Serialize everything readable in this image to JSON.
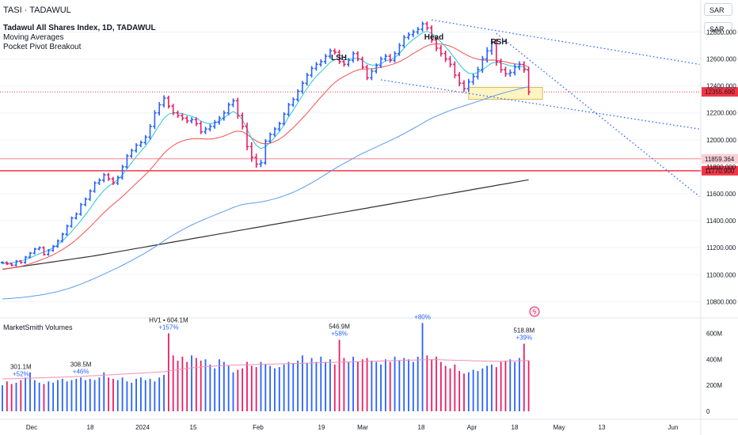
{
  "header": {
    "symbol_line": "TASI · TADAWUL",
    "currency_top": "SAR",
    "currency_second": "SAR"
  },
  "legend": {
    "line1": "Tadawul All Shares Index, 1D, TADAWUL",
    "line2": "Moving Averages",
    "line3": "Pocket Pivot Breakout"
  },
  "colors": {
    "up": "#2962ff",
    "down": "#e91e63",
    "ma_short": "#26c6da",
    "ma_mid": "#ef5350",
    "ma_long": "#5b9cf0",
    "ma_200": "#333333",
    "trendline": "#2962ff",
    "level_red": "#f23645",
    "volume_ma": "#f48fb1",
    "highlight_box": "#fff4c2"
  },
  "chart_data": {
    "type": "ohlc",
    "price_axis": {
      "ticks": [
        "12800.000",
        "12600.000",
        "12400.000",
        "12200.000",
        "12000.000",
        "11800.000",
        "11600.000",
        "11400.000",
        "11200.000",
        "11000.000",
        "10800.000"
      ],
      "tick_values": [
        12800,
        12600,
        12400,
        12200,
        12000,
        11800,
        11600,
        11400,
        11200,
        11000,
        10800
      ],
      "current_price_label": "12355.690",
      "current_price": 12355.69,
      "level_labels": [
        "11859.364",
        "11770.900"
      ],
      "level_values": [
        11859.364,
        11770.9
      ]
    },
    "volume_axis": {
      "title": "MarketSmith Volumes",
      "ticks": [
        "600M",
        "400M",
        "200M",
        "0"
      ],
      "tick_values": [
        600,
        400,
        200,
        0
      ]
    },
    "x_axis": {
      "labels": [
        "Dec",
        "18",
        "2024",
        "15",
        "Feb",
        "19",
        "Mar",
        "18",
        "Apr",
        "18",
        "May",
        "13",
        "Jun"
      ]
    },
    "patterns": [
      "LSH",
      "Head",
      "RSH"
    ],
    "volume_annotations": [
      {
        "value": "301.1M",
        "pct": "+52%"
      },
      {
        "value": "308.5M",
        "pct": "+46%"
      },
      {
        "value": "HV1 • 604.1M",
        "pct": "+157%"
      },
      {
        "value": "546.9M",
        "pct": "+58%"
      },
      {
        "value": "",
        "pct": "+80%"
      },
      {
        "value": "518.8M",
        "pct": "+39%"
      }
    ],
    "closes": [
      11090,
      11080,
      11070,
      11100,
      11090,
      11130,
      11160,
      11190,
      11200,
      11150,
      11180,
      11210,
      11250,
      11300,
      11360,
      11420,
      11450,
      11520,
      11560,
      11620,
      11680,
      11700,
      11740,
      11710,
      11680,
      11720,
      11800,
      11880,
      11920,
      11960,
      11980,
      12020,
      12100,
      12200,
      12260,
      12310,
      12250,
      12200,
      12180,
      12160,
      12140,
      12150,
      12120,
      12060,
      12080,
      12100,
      12130,
      12160,
      12200,
      12260,
      12290,
      12180,
      12100,
      11950,
      11870,
      11820,
      11830,
      11990,
      12040,
      12080,
      12120,
      12190,
      12260,
      12300,
      12360,
      12420,
      12480,
      12530,
      12560,
      12580,
      12620,
      12660,
      12650,
      12580,
      12560,
      12590,
      12640,
      12600,
      12540,
      12460,
      12510,
      12550,
      12600,
      12620,
      12590,
      12640,
      12700,
      12760,
      12780,
      12800,
      12820,
      12860,
      12830,
      12740,
      12680,
      12640,
      12600,
      12560,
      12480,
      12420,
      12380,
      12430,
      12470,
      12520,
      12600,
      12660,
      12720,
      12580,
      12520,
      12490,
      12500,
      12540,
      12560,
      12520,
      12355
    ],
    "ranges": [
      35,
      35,
      35,
      35,
      35,
      35,
      35,
      40,
      40,
      40,
      40,
      40,
      45,
      45,
      45,
      45,
      45,
      50,
      50,
      50,
      50,
      60,
      60,
      60,
      60,
      60,
      60,
      60,
      60,
      60,
      60,
      60,
      70,
      80,
      80,
      80,
      70,
      70,
      70,
      70,
      70,
      70,
      70,
      70,
      70,
      70,
      70,
      70,
      70,
      70,
      70,
      90,
      90,
      110,
      130,
      110,
      90,
      60,
      60,
      60,
      60,
      60,
      60,
      60,
      60,
      70,
      70,
      70,
      70,
      70,
      70,
      70,
      70,
      70,
      70,
      70,
      70,
      70,
      70,
      70,
      70,
      70,
      70,
      70,
      70,
      70,
      70,
      70,
      70,
      70,
      70,
      70,
      70,
      80,
      90,
      90,
      90,
      90,
      90,
      90,
      90,
      90,
      90,
      90,
      90,
      110,
      120,
      120,
      90,
      90,
      90,
      90,
      90,
      90,
      90
    ],
    "ma_short": [
      11080,
      11085,
      11088,
      11092,
      11100,
      11112,
      11125,
      11140,
      11155,
      11168,
      11182,
      11200,
      11222,
      11250,
      11285,
      11320,
      11360,
      11400,
      11445,
      11490,
      11540,
      11585,
      11625,
      11655,
      11680,
      11705,
      11740,
      11785,
      11830,
      11875,
      11915,
      11955,
      12000,
      12055,
      12110,
      12160,
      12190,
      12200,
      12200,
      12195,
      12185,
      12175,
      12160,
      12140,
      12125,
      12120,
      12125,
      12140,
      12160,
      12190,
      12210,
      12190,
      12150,
      12080,
      12010,
      11960,
      11935,
      11950,
      11980,
      12020,
      12060,
      12110,
      12170,
      12220,
      12275,
      12330,
      12380,
      12430,
      12470,
      12505,
      12540,
      12575,
      12595,
      12600,
      12595,
      12595,
      12605,
      12605,
      12590,
      12565,
      12555,
      12555,
      12565,
      12585,
      12595,
      12610,
      12640,
      12680,
      12715,
      12745,
      12770,
      12795,
      12805,
      12790,
      12760,
      12725,
      12690,
      12650,
      12605,
      12560,
      12520,
      12495,
      12490,
      12500,
      12520,
      12545,
      12570,
      12575,
      12570,
      12560,
      12550,
      12545,
      12545,
      12540,
      12510
    ],
    "ma_mid": [
      11040,
      11045,
      11050,
      11055,
      11062,
      11070,
      11080,
      11092,
      11105,
      11118,
      11132,
      11148,
      11165,
      11185,
      11208,
      11232,
      11260,
      11290,
      11322,
      11355,
      11390,
      11425,
      11460,
      11492,
      11522,
      11550,
      11580,
      11612,
      11645,
      11678,
      11710,
      11742,
      11778,
      11818,
      11860,
      11900,
      11932,
      11958,
      11978,
      11992,
      12002,
      12008,
      12010,
      12008,
      12006,
      12006,
      12010,
      12018,
      12028,
      12042,
      12058,
      12065,
      12060,
      12040,
      12015,
      11992,
      11975,
      11970,
      11975,
      11988,
      12005,
      12028,
      12058,
      12090,
      12125,
      12160,
      12198,
      12238,
      12278,
      12318,
      12355,
      12392,
      12425,
      12450,
      12470,
      12488,
      12505,
      12518,
      12525,
      12526,
      12528,
      12532,
      12538,
      12546,
      12555,
      12566,
      12580,
      12598,
      12618,
      12640,
      12660,
      12680,
      12698,
      12708,
      12712,
      12710,
      12705,
      12695,
      12680,
      12660,
      12640,
      12622,
      12608,
      12598,
      12592,
      12590,
      12592,
      12590,
      12585,
      12578,
      12570,
      12564,
      12560,
      12555,
      12540
    ],
    "ma_long": [
      10820,
      10822,
      10824,
      10827,
      10830,
      10834,
      10838,
      10843,
      10848,
      10854,
      10860,
      10867,
      10875,
      10884,
      10894,
      10905,
      10917,
      10930,
      10944,
      10958,
      10973,
      10988,
      11004,
      11020,
      11036,
      11052,
      11069,
      11087,
      11105,
      11124,
      11143,
      11162,
      11183,
      11205,
      11228,
      11251,
      11273,
      11294,
      11314,
      11333,
      11351,
      11368,
      11384,
      11399,
      11414,
      11428,
      11442,
      11456,
      11470,
      11484,
      11498,
      11510,
      11520,
      11526,
      11530,
      11534,
      11539,
      11546,
      11554,
      11563,
      11573,
      11584,
      11597,
      11611,
      11627,
      11644,
      11662,
      11681,
      11701,
      11722,
      11743,
      11765,
      11786,
      11806,
      11825,
      11844,
      11863,
      11882,
      11899,
      11915,
      11931,
      11947,
      11963,
      11979,
      11995,
      12011,
      12028,
      12046,
      12065,
      12084,
      12103,
      12123,
      12142,
      12160,
      12176,
      12191,
      12205,
      12218,
      12230,
      12241,
      12252,
      12263,
      12274,
      12285,
      12297,
      12309,
      12321,
      12332,
      12342,
      12352,
      12361,
      12370,
      12379,
      12387,
      12393
    ],
    "ma_200": [
      11040,
      11045,
      11050,
      11055,
      11060,
      11065,
      11070,
      11075,
      11080,
      11085,
      11090,
      11095,
      11100,
      11105,
      11110,
      11115,
      11120,
      11125,
      11130,
      11135,
      11140,
      11146,
      11152,
      11158,
      11164,
      11170,
      11176,
      11182,
      11188,
      11194,
      11200,
      11206,
      11212,
      11218,
      11224,
      11230,
      11236,
      11242,
      11248,
      11254,
      11260,
      11266,
      11272,
      11278,
      11284,
      11290,
      11296,
      11302,
      11308,
      11314,
      11320,
      11326,
      11332,
      11338,
      11344,
      11350,
      11356,
      11362,
      11368,
      11374,
      11380,
      11386,
      11392,
      11398,
      11404,
      11410,
      11416,
      11422,
      11428,
      11434,
      11440,
      11446,
      11452,
      11458,
      11464,
      11470,
      11476,
      11482,
      11488,
      11494,
      11500,
      11506,
      11512,
      11518,
      11524,
      11530,
      11536,
      11542,
      11548,
      11554,
      11560,
      11566,
      11572,
      11578,
      11584,
      11590,
      11596,
      11602,
      11608,
      11614,
      11620,
      11626,
      11632,
      11638,
      11644,
      11650,
      11656,
      11662,
      11668,
      11674,
      11680,
      11686,
      11692,
      11698,
      11704
    ],
    "volumes": [
      200,
      230,
      210,
      220,
      240,
      260,
      300,
      240,
      220,
      210,
      230,
      220,
      240,
      250,
      230,
      240,
      250,
      260,
      240,
      250,
      240,
      260,
      300,
      260,
      250,
      240,
      260,
      230,
      220,
      250,
      260,
      240,
      250,
      230,
      260,
      280,
      600,
      430,
      390,
      420,
      380,
      430,
      410,
      390,
      400,
      360,
      330,
      400,
      380,
      350,
      300,
      320,
      330,
      380,
      350,
      340,
      380,
      360,
      350,
      330,
      340,
      360,
      380,
      370,
      390,
      430,
      370,
      410,
      380,
      420,
      380,
      400,
      360,
      550,
      410,
      380,
      420,
      380,
      400,
      410,
      390,
      380,
      360,
      400,
      380,
      420,
      390,
      410,
      400,
      380,
      420,
      680,
      430,
      400,
      420,
      380,
      350,
      330,
      360,
      310,
      290,
      300,
      320,
      310,
      330,
      350,
      360,
      340,
      380,
      390,
      400,
      380,
      410,
      520,
      390
    ],
    "volume_ma": [
      250,
      250,
      250,
      252,
      253,
      254,
      255,
      256,
      257,
      258,
      260,
      261,
      262,
      263,
      264,
      265,
      266,
      268,
      270,
      272,
      274,
      276,
      278,
      280,
      282,
      284,
      286,
      288,
      290,
      292,
      294,
      296,
      298,
      300,
      302,
      305,
      310,
      315,
      320,
      325,
      330,
      334,
      338,
      341,
      344,
      346,
      348,
      350,
      352,
      354,
      355,
      356,
      357,
      358,
      359,
      360,
      361,
      362,
      363,
      364,
      365,
      366,
      367,
      368,
      369,
      370,
      371,
      372,
      373,
      374,
      375,
      376,
      377,
      378,
      379,
      380,
      381,
      382,
      383,
      384,
      385,
      386,
      387,
      388,
      389,
      390,
      391,
      392,
      393,
      394,
      395,
      396,
      397,
      397,
      397,
      396,
      395,
      394,
      393,
      392,
      391,
      390,
      389,
      388,
      387,
      386,
      385,
      385,
      385,
      386,
      387,
      388,
      389,
      390,
      391
    ]
  }
}
